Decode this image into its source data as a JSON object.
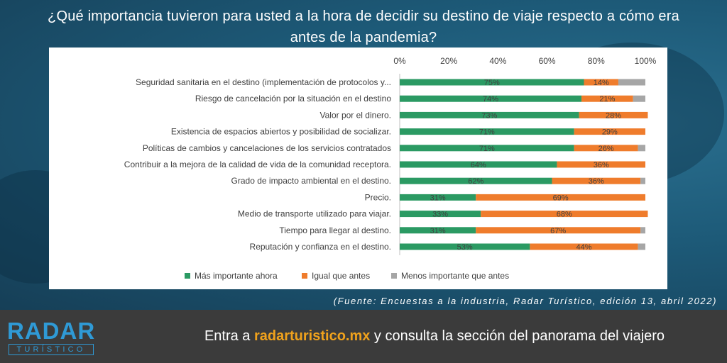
{
  "title": {
    "line1": "¿Qué importancia tuvieron para usted a la hora de decidir su destino de viaje respecto a cómo era",
    "line2": "antes de la pandemia?"
  },
  "source": "(Fuente: Encuestas a la industria, Radar Turístico, edición 13, abril 2022)",
  "footer": {
    "logo_top": "RADAR",
    "logo_bottom": "TURÍSTICO",
    "cta_prefix": "Entra a ",
    "cta_link": "radarturistico.mx",
    "cta_suffix": " y consulta la sección del panorama del viajero"
  },
  "colors": {
    "mas_importante": "#2b9a63",
    "igual": "#ef7c2c",
    "menos": "#a6a6a6",
    "background": "#1d5a78",
    "footer": "#3b3b3b",
    "accent": "#f0a21c"
  },
  "chart_data": {
    "type": "bar",
    "orientation": "horizontal",
    "stacked": true,
    "xlim": [
      0,
      100
    ],
    "ticks": [
      "0%",
      "20%",
      "40%",
      "60%",
      "80%",
      "100%"
    ],
    "tick_values": [
      0,
      20,
      40,
      60,
      80,
      100
    ],
    "grid": false,
    "legend_position": "bottom",
    "categories": [
      "Seguridad sanitaria en el destino (implementación de protocolos y...",
      "Riesgo de cancelación por la situación en el destino",
      "Valor por el dinero.",
      "Existencia de espacios abiertos y posibilidad de socializar.",
      "Políticas de cambios y cancelaciones de los servicios contratados",
      "Contribuir a la mejora de la calidad de vida de la comunidad receptora.",
      "Grado de impacto ambiental en el destino.",
      "Precio.",
      "Medio de transporte utilizado para viajar.",
      "Tiempo para llegar al destino.",
      "Reputación y confianza en el destino."
    ],
    "series": [
      {
        "name": "Más importante ahora",
        "color": "#2b9a63",
        "values": [
          75,
          74,
          73,
          71,
          71,
          64,
          62,
          31,
          33,
          31,
          53
        ],
        "labels": [
          "75%",
          "74%",
          "73%",
          "71%",
          "71%",
          "64%",
          "62%",
          "31%",
          "33%",
          "31%",
          "53%"
        ]
      },
      {
        "name": "Igual que antes",
        "color": "#ef7c2c",
        "values": [
          14,
          21,
          28,
          29,
          26,
          36,
          36,
          69,
          68,
          67,
          44
        ],
        "labels": [
          "14%",
          "21%",
          "28%",
          "29%",
          "26%",
          "36%",
          "36%",
          "69%",
          "68%",
          "67%",
          "44%"
        ]
      },
      {
        "name": "Menos importante que antes",
        "color": "#a6a6a6",
        "values": [
          11,
          5,
          0,
          0,
          3,
          0,
          2,
          0,
          0,
          2,
          3
        ],
        "labels": [
          "",
          "",
          "",
          "",
          "",
          "",
          "",
          "",
          "",
          "",
          ""
        ]
      }
    ]
  }
}
